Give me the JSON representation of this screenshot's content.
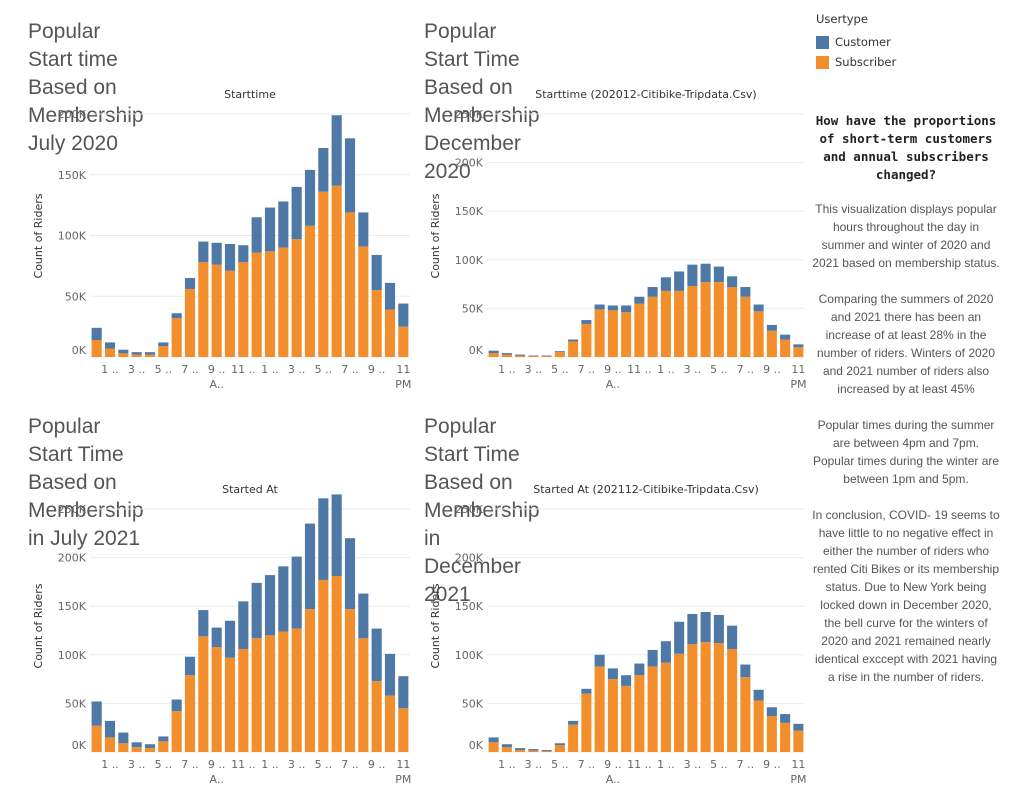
{
  "colors": {
    "customer": "#4e79a7",
    "subscriber": "#f28e2b",
    "grid": "#ebebeb"
  },
  "legend": {
    "title": "Usertype",
    "items": [
      {
        "label": "Customer",
        "color": "#4e79a7"
      },
      {
        "label": "Subscriber",
        "color": "#f28e2b"
      }
    ]
  },
  "sidebar": {
    "question": "How have the proportions of short-term customers and annual subscribers changed?",
    "paragraphs": [
      "This visualization displays popular hours throughout the day in summer and winter of 2020 and 2021 based on membership status.",
      "Comparing the summers of 2020 and 2021 there has been an increase of at least 28% in the number of riders. Winters of 2020 and 2021 number of riders also increased by at least 45%",
      "Popular times during the summer are between 4pm and 7pm. Popular times during the winter are between 1pm and 5pm.",
      "In conclusion, COVID- 19 seems to have little to no negative effect in either the number of riders who rented Citi Bikes or its membership status. Due to New York being locked down in December 2020, the bell curve for the winters of 2020 and 2021 remained nearly identical exccept with 2021 having a rise in the number of riders."
    ]
  },
  "panels": [
    {
      "title": "Popular Start time Based on\nMembership July 2020"
    },
    {
      "title": "Popular Start Time Based on\nMembership December 2020"
    },
    {
      "title": "Popular Start Time Based on\nMembership in July 2021"
    },
    {
      "title": "Popular Start Time Based on\nMembership in December 2021"
    }
  ],
  "chart_data": [
    {
      "type": "bar",
      "stacked": true,
      "title": "Starttime",
      "ylabel": "Count of Riders",
      "ylim": [
        0,
        200000
      ],
      "yticks": [
        0,
        50000,
        100000,
        150000,
        200000
      ],
      "ytick_labels": [
        "0K",
        "50K",
        "100K",
        "150K",
        "200K"
      ],
      "xtick_labels": [
        [
          "1 ..",
          ""
        ],
        [
          "3 ..",
          ""
        ],
        [
          "5 ..",
          ""
        ],
        [
          "7 ..",
          ""
        ],
        [
          "9 ..",
          "A.."
        ],
        [
          "11 ..",
          ""
        ],
        [
          "1 ..",
          ""
        ],
        [
          "3 ..",
          ""
        ],
        [
          "5 ..",
          ""
        ],
        [
          "7 ..",
          ""
        ],
        [
          "9 ..",
          ""
        ],
        [
          "11",
          "PM"
        ]
      ],
      "categories": [
        "12 AM",
        "1 AM",
        "2 AM",
        "3 AM",
        "4 AM",
        "5 AM",
        "6 AM",
        "7 AM",
        "8 AM",
        "9 AM",
        "10 AM",
        "11 AM",
        "12 PM",
        "1 PM",
        "2 PM",
        "3 PM",
        "4 PM",
        "5 PM",
        "6 PM",
        "7 PM",
        "8 PM",
        "9 PM",
        "10 PM",
        "11 PM"
      ],
      "series": [
        {
          "name": "Subscriber",
          "values": [
            14000,
            7000,
            3000,
            2000,
            2000,
            9000,
            32000,
            56000,
            78000,
            76000,
            71000,
            78000,
            86000,
            87000,
            90000,
            97000,
            108000,
            136000,
            141000,
            119000,
            91000,
            55000,
            39000,
            25000
          ]
        },
        {
          "name": "Customer",
          "values": [
            10000,
            5000,
            3000,
            2000,
            2000,
            3000,
            4000,
            9000,
            17000,
            18000,
            22000,
            14000,
            29000,
            36000,
            38000,
            43000,
            46000,
            36000,
            58000,
            61000,
            28000,
            29000,
            22000,
            19000
          ]
        }
      ]
    },
    {
      "type": "bar",
      "stacked": true,
      "title": "Starttime (202012-Citibike-Tripdata.Csv)",
      "ylabel": "Count of Riders",
      "ylim": [
        0,
        250000
      ],
      "yticks": [
        0,
        50000,
        100000,
        150000,
        200000,
        250000
      ],
      "ytick_labels": [
        "0K",
        "50K",
        "100K",
        "150K",
        "200K",
        "250K"
      ],
      "xtick_labels": [
        [
          "1 ..",
          ""
        ],
        [
          "3 ..",
          ""
        ],
        [
          "5 ..",
          ""
        ],
        [
          "7 ..",
          ""
        ],
        [
          "9 ..",
          "A.."
        ],
        [
          "11 ..",
          ""
        ],
        [
          "1 ..",
          ""
        ],
        [
          "3 ..",
          ""
        ],
        [
          "5 ..",
          ""
        ],
        [
          "7 ..",
          ""
        ],
        [
          "9 ..",
          ""
        ],
        [
          "11",
          "PM"
        ]
      ],
      "categories": [
        "12 AM",
        "1 AM",
        "2 AM",
        "3 AM",
        "4 AM",
        "5 AM",
        "6 AM",
        "7 AM",
        "8 AM",
        "9 AM",
        "10 AM",
        "11 AM",
        "12 PM",
        "1 PM",
        "2 PM",
        "3 PM",
        "4 PM",
        "5 PM",
        "6 PM",
        "7 PM",
        "8 PM",
        "9 PM",
        "10 PM",
        "11 PM"
      ],
      "series": [
        {
          "name": "Subscriber",
          "values": [
            4000,
            2500,
            1500,
            1000,
            1000,
            5000,
            16000,
            34000,
            49000,
            48000,
            46000,
            55000,
            62000,
            68000,
            68000,
            73000,
            77000,
            77000,
            72000,
            62000,
            47000,
            27000,
            18000,
            10000
          ]
        },
        {
          "name": "Customer",
          "values": [
            2500,
            1500,
            1000,
            500,
            500,
            1000,
            2000,
            4000,
            5000,
            5000,
            7000,
            7000,
            10000,
            14000,
            20000,
            22000,
            19000,
            16000,
            11000,
            10000,
            7000,
            6000,
            5000,
            3000
          ]
        }
      ]
    },
    {
      "type": "bar",
      "stacked": true,
      "title": "Started At",
      "ylabel": "Count of Riders",
      "ylim": [
        0,
        250000
      ],
      "yticks": [
        0,
        50000,
        100000,
        150000,
        200000,
        250000
      ],
      "ytick_labels": [
        "0K",
        "50K",
        "100K",
        "150K",
        "200K",
        "250K"
      ],
      "xtick_labels": [
        [
          "1 ..",
          ""
        ],
        [
          "3 ..",
          ""
        ],
        [
          "5 ..",
          ""
        ],
        [
          "7 ..",
          ""
        ],
        [
          "9 ..",
          "A.."
        ],
        [
          "11 ..",
          ""
        ],
        [
          "1 ..",
          ""
        ],
        [
          "3 ..",
          ""
        ],
        [
          "5 ..",
          ""
        ],
        [
          "7 ..",
          ""
        ],
        [
          "9 ..",
          ""
        ],
        [
          "11",
          "PM"
        ]
      ],
      "categories": [
        "12 AM",
        "1 AM",
        "2 AM",
        "3 AM",
        "4 AM",
        "5 AM",
        "6 AM",
        "7 AM",
        "8 AM",
        "9 AM",
        "10 AM",
        "11 AM",
        "12 PM",
        "1 PM",
        "2 PM",
        "3 PM",
        "4 PM",
        "5 PM",
        "6 PM",
        "7 PM",
        "8 PM",
        "9 PM",
        "10 PM",
        "11 PM"
      ],
      "series": [
        {
          "name": "Subscriber",
          "values": [
            27000,
            15000,
            9000,
            5000,
            4000,
            11000,
            42000,
            79000,
            119000,
            108000,
            97000,
            106000,
            117000,
            120000,
            124000,
            127000,
            147000,
            177000,
            181000,
            147000,
            117000,
            73000,
            58000,
            45000
          ]
        },
        {
          "name": "Customer",
          "values": [
            25000,
            17000,
            11000,
            5000,
            4000,
            5000,
            12000,
            19000,
            27000,
            20000,
            38000,
            49000,
            57000,
            62000,
            67000,
            74000,
            88000,
            84000,
            84000,
            73000,
            46000,
            54000,
            43000,
            33000
          ]
        }
      ]
    },
    {
      "type": "bar",
      "stacked": true,
      "title": "Started At (202112-Citibike-Tripdata.Csv)",
      "ylabel": "Count of Riders",
      "ylim": [
        0,
        250000
      ],
      "yticks": [
        0,
        50000,
        100000,
        150000,
        200000,
        250000
      ],
      "ytick_labels": [
        "0K",
        "50K",
        "100K",
        "150K",
        "200K",
        "250K"
      ],
      "xtick_labels": [
        [
          "1 ..",
          ""
        ],
        [
          "3 ..",
          ""
        ],
        [
          "5 ..",
          ""
        ],
        [
          "7 ..",
          ""
        ],
        [
          "9 ..",
          "A.."
        ],
        [
          "11 ..",
          ""
        ],
        [
          "1 ..",
          ""
        ],
        [
          "3 ..",
          ""
        ],
        [
          "5 ..",
          ""
        ],
        [
          "7 ..",
          ""
        ],
        [
          "9 ..",
          ""
        ],
        [
          "11",
          "PM"
        ]
      ],
      "categories": [
        "12 AM",
        "1 AM",
        "2 AM",
        "3 AM",
        "4 AM",
        "5 AM",
        "6 AM",
        "7 AM",
        "8 AM",
        "9 AM",
        "10 AM",
        "11 AM",
        "12 PM",
        "1 PM",
        "2 PM",
        "3 PM",
        "4 PM",
        "5 PM",
        "6 PM",
        "7 PM",
        "8 PM",
        "9 PM",
        "10 PM",
        "11 PM"
      ],
      "series": [
        {
          "name": "Subscriber",
          "values": [
            10000,
            5000,
            2000,
            1500,
            1000,
            7000,
            28000,
            60000,
            88000,
            75000,
            68000,
            79000,
            88000,
            92000,
            101000,
            111000,
            113000,
            112000,
            106000,
            77000,
            53000,
            37000,
            30000,
            22000
          ]
        },
        {
          "name": "Customer",
          "values": [
            5000,
            3000,
            2000,
            1500,
            1000,
            2000,
            4000,
            5000,
            12000,
            11000,
            11000,
            12000,
            17000,
            22000,
            33000,
            31000,
            31000,
            29000,
            24000,
            13000,
            11000,
            9000,
            9000,
            7000
          ]
        }
      ]
    }
  ]
}
